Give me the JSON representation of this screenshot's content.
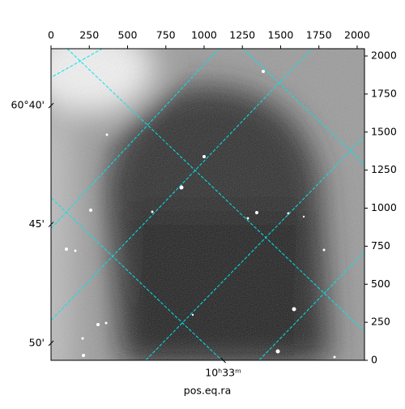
{
  "chart_data": {
    "type": "wcs-image",
    "xlabel": "pos.eq.ra",
    "xlim": [
      0,
      2048
    ],
    "xticks": [
      0,
      250,
      500,
      750,
      1000,
      1250,
      1500,
      1750,
      2000
    ],
    "ylim": [
      0,
      2048
    ],
    "yticks": [
      0,
      250,
      500,
      750,
      1000,
      1250,
      1500,
      1750,
      2000
    ],
    "dec_ticks": [
      {
        "value": 1674,
        "label": "60°40'"
      },
      {
        "value": 893,
        "label": "45'"
      },
      {
        "value": 112,
        "label": "50'"
      }
    ],
    "ra_ticks": [
      {
        "value": 1125,
        "label": "10ʰ33ᵐ"
      }
    ],
    "grid_color": "#00e5ee",
    "cmap": "gray"
  }
}
